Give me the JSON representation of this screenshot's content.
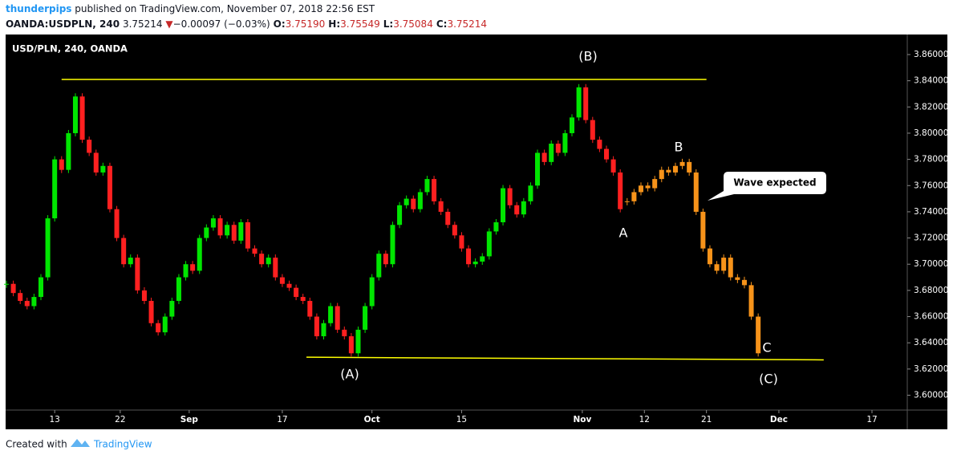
{
  "header": {
    "author": "thunderpips",
    "published": "published on TradingView.com, November 07, 2018 22:56 EST",
    "symbol": "OANDA:USDPLN, 240",
    "last": "3.75214",
    "direction": "▼",
    "change": "−0.00097 (−0.03%)",
    "ohlc": [
      {
        "label": "O:",
        "value": "3.75190"
      },
      {
        "label": "H:",
        "value": "3.75549"
      },
      {
        "label": "L:",
        "value": "3.75084"
      },
      {
        "label": "C:",
        "value": "3.75214"
      }
    ]
  },
  "chart_data": {
    "type": "candlestick",
    "title": "USD/PLN, 240, OANDA",
    "xlim": [
      0,
      261
    ],
    "xticks": [
      {
        "value": 14,
        "label": "13"
      },
      {
        "value": 33,
        "label": "22"
      },
      {
        "value": 53,
        "label": "Sep"
      },
      {
        "value": 80,
        "label": "17"
      },
      {
        "value": 106,
        "label": "Oct"
      },
      {
        "value": 132,
        "label": "15"
      },
      {
        "value": 167,
        "label": "Nov"
      },
      {
        "value": 185,
        "label": "12"
      },
      {
        "value": 203,
        "label": "21"
      },
      {
        "value": 224,
        "label": "Dec"
      },
      {
        "value": 251,
        "label": "17"
      }
    ],
    "ylim": [
      3.5893,
      3.8753
    ],
    "yticks": [
      {
        "value": 3.6,
        "label": "3.60000"
      },
      {
        "value": 3.62,
        "label": "3.62000"
      },
      {
        "value": 3.64,
        "label": "3.64000"
      },
      {
        "value": 3.66,
        "label": "3.66000"
      },
      {
        "value": 3.68,
        "label": "3.68000"
      },
      {
        "value": 3.7,
        "label": "3.70000"
      },
      {
        "value": 3.72,
        "label": "3.72000"
      },
      {
        "value": 3.74,
        "label": "3.74000"
      },
      {
        "value": 3.76,
        "label": "3.76000"
      },
      {
        "value": 3.78,
        "label": "3.78000"
      },
      {
        "value": 3.8,
        "label": "3.80000"
      },
      {
        "value": 3.82,
        "label": "3.82000"
      },
      {
        "value": 3.84,
        "label": "3.84000"
      },
      {
        "value": 3.86,
        "label": "3.86000"
      }
    ],
    "up_color": "#00e600",
    "down_color": "#ff2020",
    "series": [
      {
        "color": null,
        "x": [
          0,
          2,
          4,
          6,
          8,
          10,
          12,
          14,
          16,
          18,
          20,
          22,
          24,
          26,
          28,
          30,
          32,
          34,
          36,
          38,
          40,
          42,
          44,
          46,
          48,
          50,
          52,
          54,
          56,
          58,
          60,
          62,
          64,
          66,
          68,
          70,
          72,
          74,
          76,
          78,
          80,
          82,
          84,
          86,
          88,
          90,
          92,
          94,
          96,
          98,
          100,
          102,
          104,
          106,
          108,
          110,
          112,
          114,
          116,
          118,
          120,
          122,
          124,
          126,
          128,
          130,
          132,
          134,
          136,
          138,
          140,
          142,
          144,
          146,
          148,
          150,
          152,
          154,
          156,
          158,
          160,
          162,
          164,
          166,
          168,
          170,
          172,
          174,
          176,
          178
        ],
        "values": [
          3.685,
          3.678,
          3.672,
          3.668,
          3.675,
          3.69,
          3.735,
          3.78,
          3.772,
          3.8,
          3.828,
          3.795,
          3.785,
          3.77,
          3.775,
          3.742,
          3.72,
          3.7,
          3.705,
          3.68,
          3.672,
          3.655,
          3.648,
          3.66,
          3.672,
          3.69,
          3.7,
          3.695,
          3.72,
          3.728,
          3.735,
          3.722,
          3.73,
          3.718,
          3.732,
          3.712,
          3.708,
          3.7,
          3.705,
          3.69,
          3.685,
          3.682,
          3.675,
          3.672,
          3.66,
          3.645,
          3.655,
          3.668,
          3.65,
          3.645,
          3.632,
          3.65,
          3.668,
          3.69,
          3.708,
          3.7,
          3.73,
          3.745,
          3.75,
          3.742,
          3.755,
          3.765,
          3.748,
          3.74,
          3.73,
          3.722,
          3.712,
          3.7,
          3.702,
          3.706,
          3.725,
          3.732,
          3.758,
          3.745,
          3.738,
          3.748,
          3.76,
          3.785,
          3.778,
          3.792,
          3.785,
          3.8,
          3.812,
          3.835,
          3.81,
          3.795,
          3.788,
          3.78,
          3.77,
          3.742
        ]
      },
      {
        "color": "#f7931a",
        "x": [
          180,
          182,
          184,
          186,
          188,
          190,
          192,
          194,
          196,
          198,
          200,
          202,
          204,
          206,
          208,
          210,
          212,
          214,
          216,
          218
        ],
        "values": [
          3.748,
          3.755,
          3.76,
          3.758,
          3.765,
          3.772,
          3.77,
          3.775,
          3.778,
          3.77,
          3.74,
          3.712,
          3.7,
          3.695,
          3.705,
          3.69,
          3.688,
          3.684,
          3.66,
          3.632
        ]
      }
    ],
    "trendlines": [
      {
        "color": "#ffff00",
        "x": [
          16,
          203
        ],
        "y": [
          3.841,
          3.841
        ]
      },
      {
        "color": "#ffff00",
        "x": [
          87,
          237
        ],
        "y": [
          3.629,
          3.627
        ]
      }
    ],
    "annotations": [
      "(B)",
      "A",
      "B",
      "C",
      "(A)",
      "(C)",
      "Wave expected"
    ]
  },
  "footer": {
    "text": "Created with",
    "brand": "TradingView"
  }
}
